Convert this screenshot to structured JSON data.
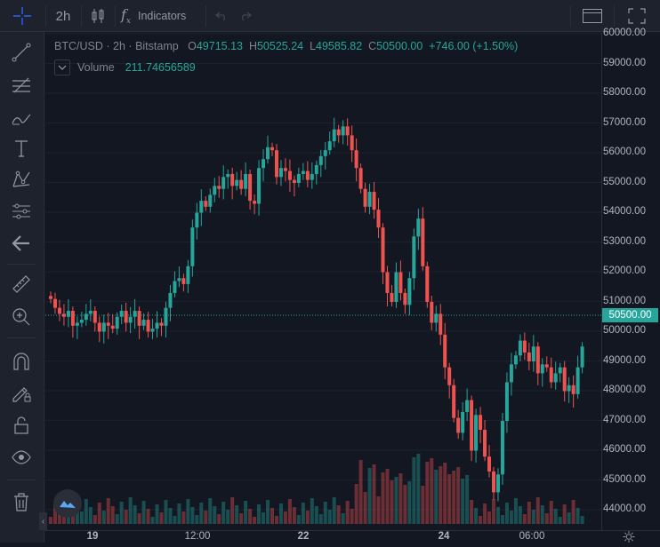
{
  "toolbar": {
    "interval": "2h",
    "indicators_label": "Indicators"
  },
  "legend": {
    "symbol": "BTC/USD",
    "interval": "2h",
    "exchange": "Bitstamp",
    "sep": "·",
    "open_key": "O",
    "open": "49715.13",
    "high_key": "H",
    "high": "50525.24",
    "low_key": "L",
    "low": "49585.82",
    "close_key": "C",
    "close": "50500.00",
    "change": "+746.00 (+1.50%)"
  },
  "volume": {
    "label": "Volume",
    "value": "211.74656589"
  },
  "price_axis": {
    "labels": [
      "60000.00",
      "59000.00",
      "58000.00",
      "57000.00",
      "56000.00",
      "55000.00",
      "54000.00",
      "53000.00",
      "52000.00",
      "51000.00",
      "50000.00",
      "49000.00",
      "48000.00",
      "47000.00",
      "46000.00",
      "45000.00",
      "44000.00"
    ],
    "current_price": "50500.00"
  },
  "time_axis": {
    "labels": [
      {
        "text": "19",
        "bold": true
      },
      {
        "text": "12:00",
        "bold": false
      },
      {
        "text": "22",
        "bold": true
      },
      {
        "text": "24",
        "bold": true
      },
      {
        "text": "06:00",
        "bold": false
      }
    ]
  },
  "colors": {
    "up": "#26a69a",
    "down": "#ef5350",
    "background": "#131722",
    "current_price_line": "#26a69a"
  },
  "icons": [
    "crosshair-icon",
    "trend-line-icon",
    "fib-icon",
    "brush-icon",
    "text-icon",
    "pattern-icon",
    "prediction-icon",
    "back-arrow-icon",
    "ruler-icon",
    "zoom-in-icon",
    "magnet-icon",
    "lock-drawing-icon",
    "unlock-icon",
    "eye-icon",
    "trash-icon"
  ]
}
